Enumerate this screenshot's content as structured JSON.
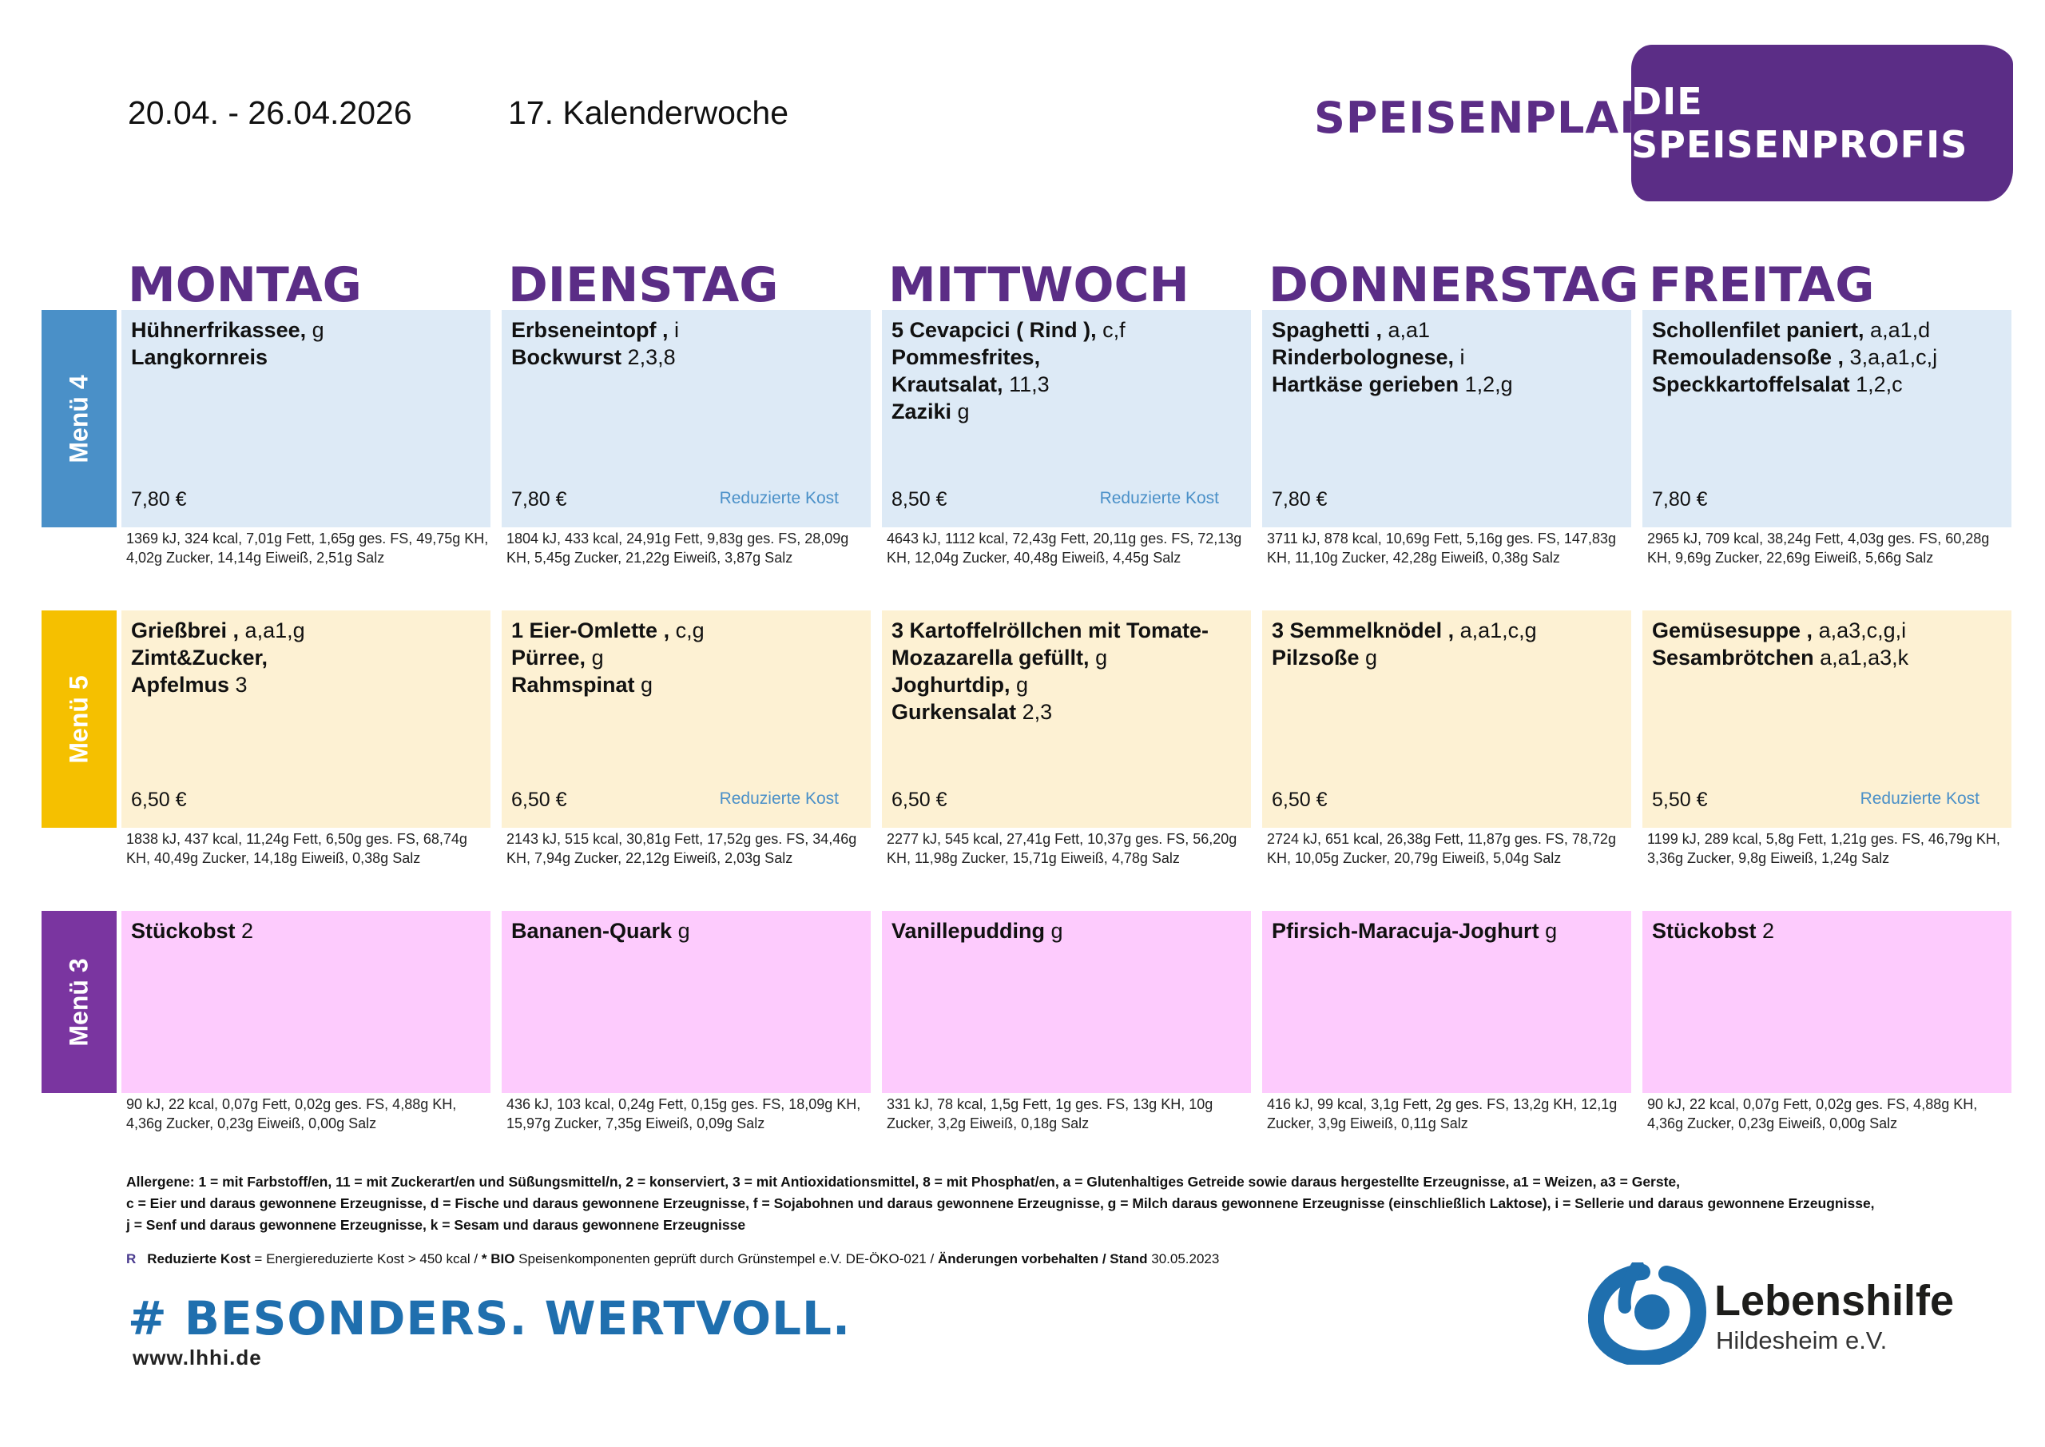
{
  "header": {
    "date_range": "20.04. - 26.04.2026",
    "week": "17. Kalenderwoche",
    "plan_title": "SPEISENPLAN",
    "badge": "DIE SPEISENPROFIS"
  },
  "days": [
    "MONTAG",
    "DIENSTAG",
    "MITTWOCH",
    "DONNERSTAG",
    "FREITAG"
  ],
  "menus": [
    {
      "label": "Menü 4",
      "color": "#4a90c8",
      "bg": "#ddeaf6",
      "cells": [
        {
          "lines": [
            {
              "name": "Hühnerfrikassee,",
              "codes": " g"
            },
            {
              "name": "Langkornreis",
              "codes": ""
            }
          ],
          "price": "7,80 €",
          "tag": "",
          "nutri": "1369 kJ, 324 kcal, 7,01g Fett, 1,65g ges. FS, 49,75g KH, 4,02g Zucker, 14,14g Eiweiß, 2,51g Salz"
        },
        {
          "lines": [
            {
              "name": "Erbseneintopf ,",
              "codes": " i"
            },
            {
              "name": "Bockwurst",
              "codes": " 2,3,8"
            }
          ],
          "price": "7,80 €",
          "tag": "Reduzierte Kost",
          "nutri": "1804 kJ, 433 kcal, 24,91g Fett, 9,83g ges. FS, 28,09g KH, 5,45g Zucker, 21,22g Eiweiß, 3,87g Salz"
        },
        {
          "lines": [
            {
              "name": "5 Cevapcici ( Rind ),",
              "codes": " c,f"
            },
            {
              "name": "Pommesfrites,",
              "codes": ""
            },
            {
              "name": "Krautsalat,",
              "codes": " 11,3"
            },
            {
              "name": "Zaziki",
              "codes": " g"
            }
          ],
          "price": "8,50 €",
          "tag": "Reduzierte Kost",
          "nutri": "4643 kJ, 1112 kcal, 72,43g Fett, 20,11g ges. FS, 72,13g KH, 12,04g Zucker, 40,48g Eiweiß, 4,45g Salz"
        },
        {
          "lines": [
            {
              "name": "Spaghetti ,",
              "codes": " a,a1"
            },
            {
              "name": "Rinderbolognese,",
              "codes": " i"
            },
            {
              "name": "Hartkäse gerieben",
              "codes": " 1,2,g"
            }
          ],
          "price": "7,80 €",
          "tag": "",
          "nutri": "3711 kJ, 878 kcal, 10,69g Fett, 5,16g ges. FS, 147,83g KH, 11,10g Zucker, 42,28g Eiweiß, 0,38g Salz"
        },
        {
          "lines": [
            {
              "name": "Schollenfilet paniert,",
              "codes": " a,a1,d"
            },
            {
              "name": "Remouladensoße ,",
              "codes": " 3,a,a1,c,j"
            },
            {
              "name": "Speckkartoffelsalat",
              "codes": " 1,2,c"
            }
          ],
          "price": "7,80 €",
          "tag": "",
          "nutri": "2965 kJ, 709 kcal, 38,24g Fett, 4,03g ges. FS, 60,28g KH, 9,69g Zucker, 22,69g Eiweiß, 5,66g Salz"
        }
      ]
    },
    {
      "label": "Menü 5",
      "color": "#f5c000",
      "bg": "#fdf1d3",
      "cells": [
        {
          "lines": [
            {
              "name": "Grießbrei ,",
              "codes": " a,a1,g"
            },
            {
              "name": "Zimt&Zucker,",
              "codes": ""
            },
            {
              "name": "Apfelmus",
              "codes": " 3"
            }
          ],
          "price": "6,50 €",
          "tag": "",
          "nutri": "1838 kJ, 437 kcal, 11,24g Fett, 6,50g ges. FS, 68,74g KH, 40,49g Zucker, 14,18g Eiweiß, 0,38g Salz"
        },
        {
          "lines": [
            {
              "name": "1 Eier-Omlette ,",
              "codes": " c,g"
            },
            {
              "name": "Pürree,",
              "codes": " g"
            },
            {
              "name": "Rahmspinat",
              "codes": " g"
            }
          ],
          "price": "6,50 €",
          "tag": "Reduzierte Kost",
          "nutri": "2143 kJ, 515 kcal, 30,81g Fett, 17,52g ges. FS, 34,46g KH, 7,94g Zucker, 22,12g Eiweiß, 2,03g Salz"
        },
        {
          "lines": [
            {
              "name": "3 Kartoffelröllchen mit Tomate-",
              "codes": ""
            },
            {
              "name": "Mozazarella gefüllt,",
              "codes": " g"
            },
            {
              "name": "Joghurtdip,",
              "codes": " g"
            },
            {
              "name": "Gurkensalat",
              "codes": " 2,3"
            }
          ],
          "price": "6,50 €",
          "tag": "",
          "nutri": "2277 kJ, 545 kcal, 27,41g Fett, 10,37g ges. FS, 56,20g KH, 11,98g Zucker, 15,71g Eiweiß, 4,78g Salz"
        },
        {
          "lines": [
            {
              "name": "3 Semmelknödel ,",
              "codes": " a,a1,c,g"
            },
            {
              "name": "Pilzsoße",
              "codes": " g"
            }
          ],
          "price": "6,50 €",
          "tag": "",
          "nutri": "2724 kJ, 651 kcal, 26,38g Fett, 11,87g ges. FS, 78,72g KH, 10,05g Zucker, 20,79g Eiweiß, 5,04g Salz"
        },
        {
          "lines": [
            {
              "name": "Gemüsesuppe ,",
              "codes": " a,a3,c,g,i"
            },
            {
              "name": "Sesambrötchen",
              "codes": " a,a1,a3,k"
            }
          ],
          "price": "5,50 €",
          "tag": "Reduzierte Kost",
          "nutri": "1199 kJ, 289 kcal, 5,8g Fett, 1,21g ges. FS, 46,79g KH, 3,36g Zucker, 9,8g Eiweiß, 1,24g Salz"
        }
      ]
    },
    {
      "label": "Menü 3",
      "color": "#7a35a0",
      "bg": "#fdcbfd",
      "cells": [
        {
          "lines": [
            {
              "name": "Stückobst",
              "codes": " 2"
            }
          ],
          "price": "",
          "tag": "",
          "nutri": "90 kJ, 22 kcal, 0,07g Fett, 0,02g ges. FS, 4,88g KH, 4,36g Zucker, 0,23g Eiweiß, 0,00g Salz"
        },
        {
          "lines": [
            {
              "name": "Bananen-Quark",
              "codes": " g"
            }
          ],
          "price": "",
          "tag": "",
          "nutri": "436 kJ, 103 kcal, 0,24g Fett, 0,15g ges. FS, 18,09g KH, 15,97g Zucker, 7,35g Eiweiß, 0,09g Salz"
        },
        {
          "lines": [
            {
              "name": "Vanillepudding",
              "codes": " g"
            }
          ],
          "price": "",
          "tag": "",
          "nutri": "331 kJ, 78 kcal, 1,5g Fett, 1g ges. FS, 13g KH, 10g Zucker, 3,2g Eiweiß, 0,18g Salz"
        },
        {
          "lines": [
            {
              "name": "Pfirsich-Maracuja-Joghurt",
              "codes": " g"
            }
          ],
          "price": "",
          "tag": "",
          "nutri": "416 kJ, 99 kcal, 3,1g Fett, 2g ges. FS, 13,2g KH, 12,1g Zucker, 3,9g Eiweiß, 0,11g Salz"
        },
        {
          "lines": [
            {
              "name": "Stückobst",
              "codes": " 2"
            }
          ],
          "price": "",
          "tag": "",
          "nutri": "90 kJ, 22 kcal, 0,07g Fett, 0,02g ges. FS, 4,88g KH, 4,36g Zucker, 0,23g Eiweiß, 0,00g Salz"
        }
      ]
    }
  ],
  "allergens": [
    "Allergene: 1 = mit Farbstoff/en, 11 = mit Zuckerart/en und Süßungsmittel/n, 2 = konserviert, 3 = mit Antioxidationsmittel, 8 = mit Phosphat/en, a = Glutenhaltiges Getreide sowie daraus hergestellte Erzeugnisse, a1 = Weizen, a3 = Gerste,",
    "c = Eier und daraus gewonnene Erzeugnisse, d = Fische und daraus gewonnene Erzeugnisse, f = Sojabohnen und daraus gewonnene Erzeugnisse, g = Milch daraus gewonnene Erzeugnisse (einschließlich Laktose), i = Sellerie und daraus gewonnene Erzeugnisse,",
    "j = Senf und daraus gewonnene Erzeugnisse, k = Sesam und daraus gewonnene Erzeugnisse"
  ],
  "legend": {
    "r": "R",
    "reduced_label": "Reduzierte Kost",
    "reduced_text": " = Energiereduzierte Kost > 450 kcal / ",
    "bio_label": "* BIO",
    "bio_text": " Speisenkomponenten geprüft durch Grünstempel e.V. DE-ÖKO-021 / ",
    "changes_label": "Änderungen vorbehalten / Stand",
    "stand_date": " 30.05.2023"
  },
  "footer": {
    "hashtag": "# BESONDERS. WERTVOLL.",
    "url": "www.lhhi.de",
    "org_name": "Lebenshilfe",
    "org_sub": "Hildesheim e.V.",
    "logo_icon": "lebenshilfe-logo-icon"
  }
}
